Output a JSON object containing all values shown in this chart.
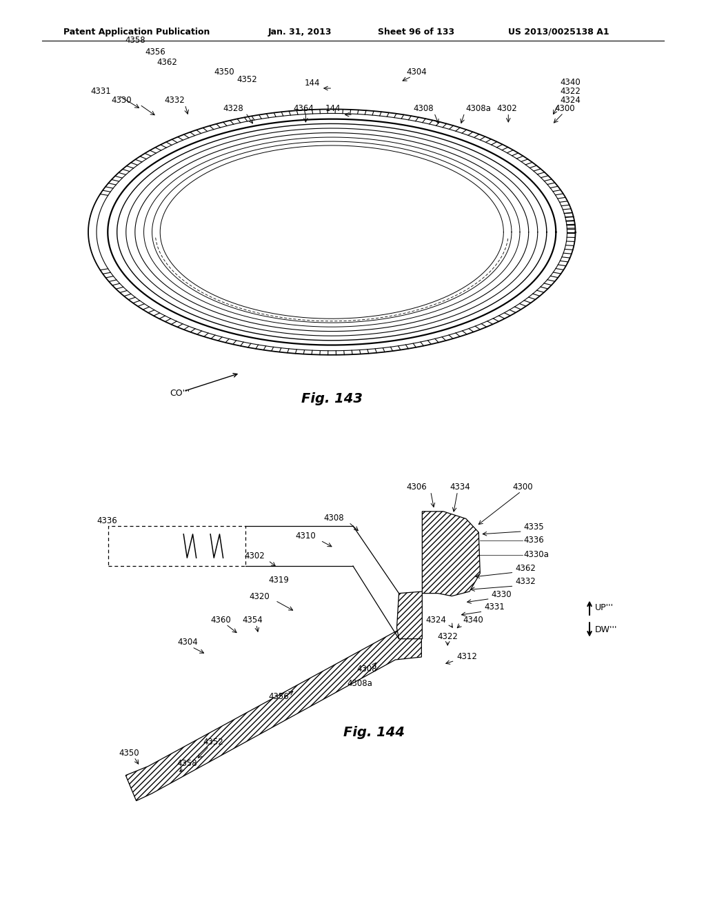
{
  "bg_color": "#ffffff",
  "header_text": "Patent Application Publication",
  "header_date": "Jan. 31, 2013",
  "header_sheet": "Sheet 96 of 133",
  "header_patent": "US 2013/0025138 A1",
  "fig143_caption": "Fig. 143",
  "fig144_caption": "Fig. 144",
  "co_label": "CO‴′",
  "up_label": "UP‴′",
  "dw_label": "DW‴′"
}
